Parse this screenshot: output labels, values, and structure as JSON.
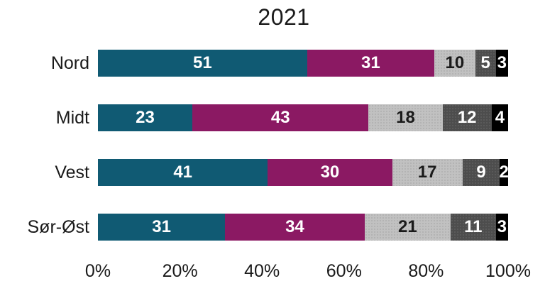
{
  "chart_data": {
    "type": "bar",
    "orientation": "horizontal-stacked",
    "title": "2021",
    "categories": [
      "Nord",
      "Midt",
      "Vest",
      "Sør-Øst"
    ],
    "series": [
      {
        "name": "teal",
        "color": "#105a73",
        "text_color": "#ffffff",
        "values": [
          51,
          23,
          41,
          31
        ]
      },
      {
        "name": "magenta",
        "color": "#8b1963",
        "text_color": "#ffffff",
        "values": [
          31,
          43,
          30,
          34
        ]
      },
      {
        "name": "light-gray",
        "color": "#c1c1c1",
        "text_color": "#1a1a1a",
        "values": [
          10,
          18,
          17,
          21
        ]
      },
      {
        "name": "dark-gray",
        "color": "#4d4d4d",
        "text_color": "#ffffff",
        "values": [
          5,
          12,
          9,
          11
        ]
      },
      {
        "name": "black",
        "color": "#000000",
        "text_color": "#ffffff",
        "values": [
          3,
          4,
          2,
          3
        ]
      }
    ],
    "x_ticks": [
      "0%",
      "20%",
      "40%",
      "60%",
      "80%",
      "100%"
    ],
    "xlim": [
      0,
      100
    ],
    "grid": false,
    "legend": false
  }
}
